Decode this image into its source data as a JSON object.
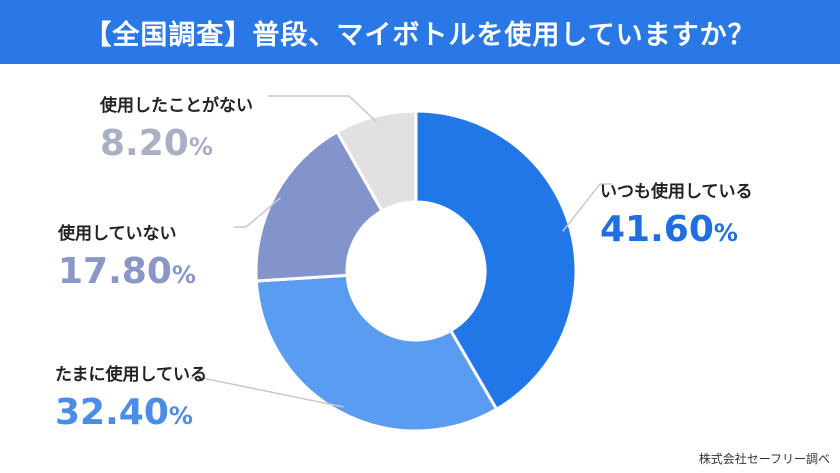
{
  "header": {
    "title": "【全国調査】普段、マイボトルを使用していますか？"
  },
  "chart_data": {
    "type": "pie",
    "title": "【全国調査】普段、マイボトルを使用していますか？",
    "slices": [
      {
        "label": "いつも使用している",
        "value": 41.6,
        "display": "41.60",
        "unit": "%",
        "color": "#2277e8"
      },
      {
        "label": "たまに使用している",
        "value": 32.4,
        "display": "32.40",
        "unit": "%",
        "color": "#5a9cf2"
      },
      {
        "label": "使用していない",
        "value": 17.8,
        "display": "17.80",
        "unit": "%",
        "color": "#8393cc"
      },
      {
        "label": "使用したことがない",
        "value": 8.2,
        "display": "8.20",
        "unit": "%",
        "color": "#e1e1e1"
      }
    ],
    "label_colors": [
      "#1f6fe0",
      "#4a8de8",
      "#8a96c8",
      "#a9b0c4"
    ],
    "donut": true
  },
  "footer": {
    "source": "株式会社セーフリー調べ"
  }
}
